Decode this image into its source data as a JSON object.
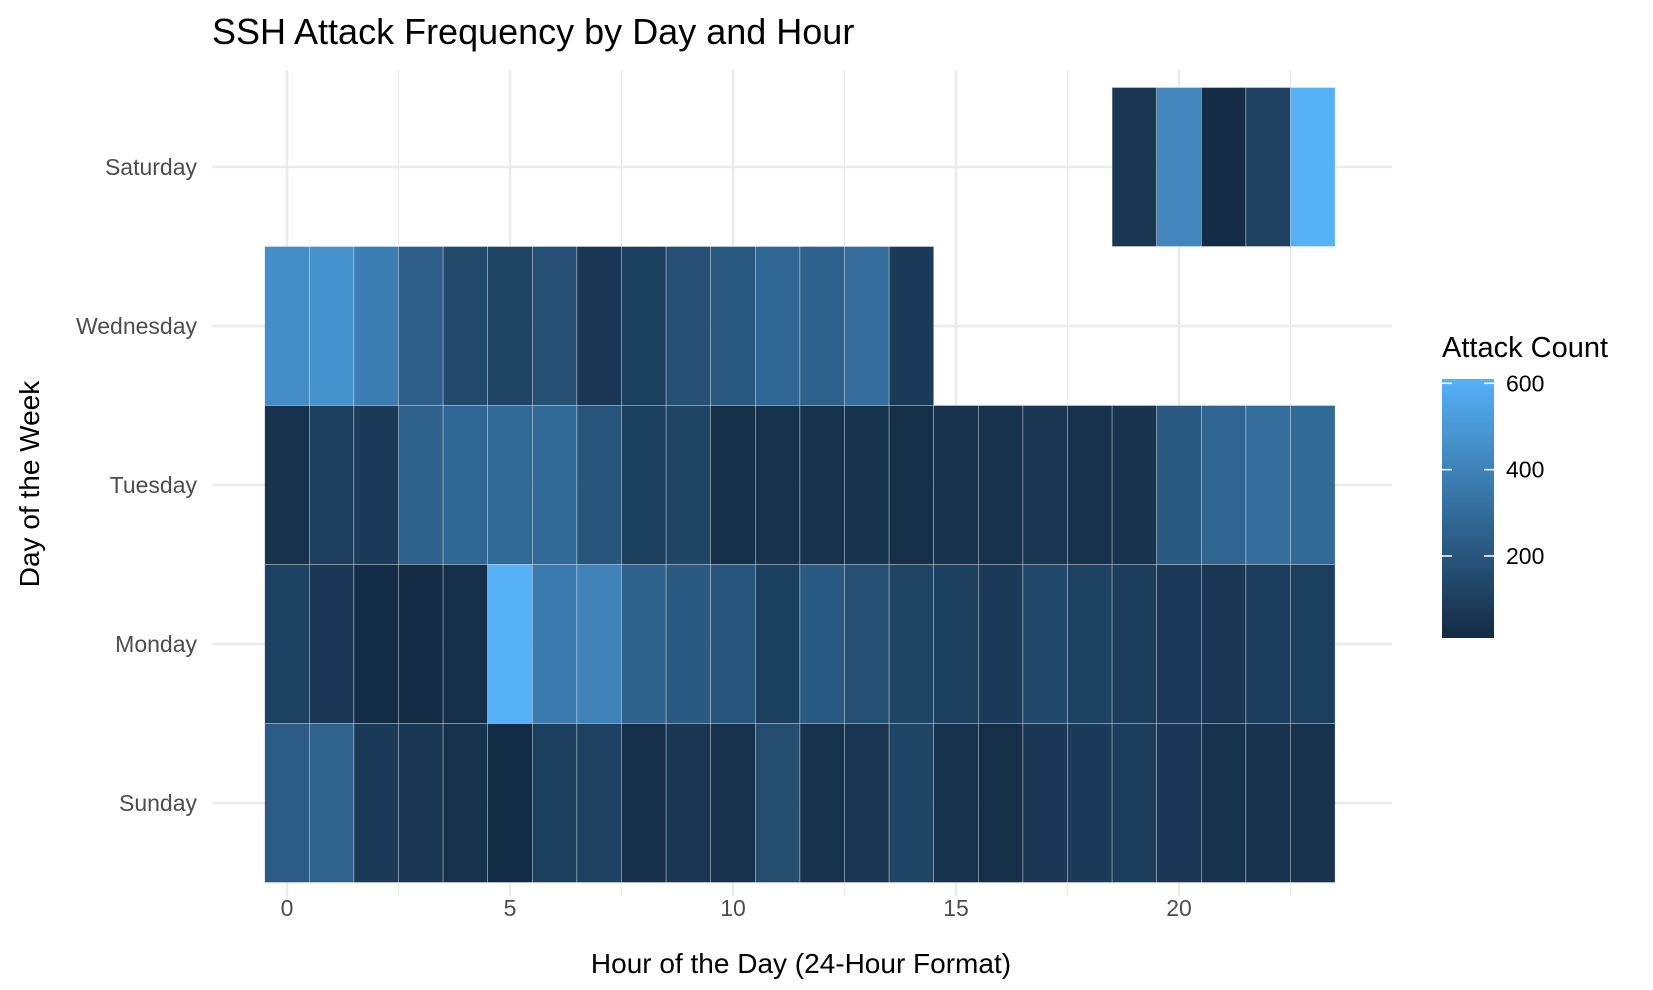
{
  "chart_data": {
    "type": "heatmap",
    "title": "SSH Attack Frequency by Day and Hour",
    "xlabel": "Hour of the Day (24-Hour Format)",
    "ylabel": "Day of the Week",
    "xlim": [
      -1,
      24
    ],
    "x_ticks": [
      0,
      5,
      10,
      15,
      20
    ],
    "days": [
      "Saturday",
      "Wednesday",
      "Tuesday",
      "Monday",
      "Sunday"
    ],
    "grid": true,
    "legend": {
      "title": "Attack Count",
      "position": "right",
      "ticks": [
        200,
        400,
        600
      ],
      "range": [
        10,
        610
      ],
      "color_low": "#132B43",
      "color_high": "#56B1F7"
    },
    "series": [
      {
        "day": "Saturday",
        "start_hour": 19,
        "values": [
          60,
          420,
          15,
          110,
          610
        ]
      },
      {
        "day": "Wednesday",
        "start_hour": 0,
        "values": [
          450,
          470,
          380,
          240,
          150,
          120,
          170,
          60,
          100,
          170,
          210,
          280,
          250,
          310,
          80
        ]
      },
      {
        "day": "Tuesday",
        "start_hour": 0,
        "values": [
          40,
          100,
          80,
          250,
          280,
          290,
          290,
          200,
          100,
          120,
          30,
          40,
          40,
          50,
          30,
          40,
          40,
          60,
          40,
          50,
          220,
          270,
          310,
          290
        ]
      },
      {
        "day": "Monday",
        "start_hour": 0,
        "values": [
          110,
          70,
          20,
          10,
          30,
          610,
          370,
          400,
          250,
          220,
          200,
          100,
          220,
          170,
          120,
          100,
          80,
          140,
          110,
          90,
          80,
          60,
          90,
          100
        ]
      },
      {
        "day": "Sunday",
        "start_hour": 0,
        "values": [
          230,
          260,
          80,
          60,
          40,
          20,
          100,
          110,
          30,
          60,
          40,
          160,
          40,
          60,
          120,
          40,
          30,
          70,
          80,
          90,
          70,
          50,
          40,
          40
        ]
      }
    ]
  }
}
